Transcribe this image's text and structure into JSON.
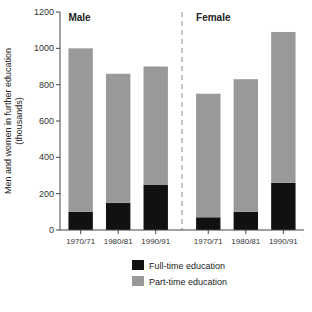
{
  "chart_data": {
    "type": "bar",
    "stacked": true,
    "ylabel": "Men and women in further education\n(thousands)",
    "categories": [
      "1970/71",
      "1980/81",
      "1990/91",
      "1970/71",
      "1980/81",
      "1990/91"
    ],
    "annotations": [
      "Male",
      "Female"
    ],
    "series": [
      {
        "name": "Full-time education",
        "color": "#111111",
        "values": [
          100,
          150,
          250,
          70,
          100,
          260
        ]
      },
      {
        "name": "Part-time education",
        "color": "#999999",
        "values": [
          900,
          710,
          650,
          680,
          730,
          830
        ]
      }
    ],
    "ylim": [
      0,
      1200
    ],
    "yticks": [
      0,
      200,
      400,
      600,
      800,
      1000,
      1200
    ],
    "grid": false,
    "legend": "bottom"
  }
}
